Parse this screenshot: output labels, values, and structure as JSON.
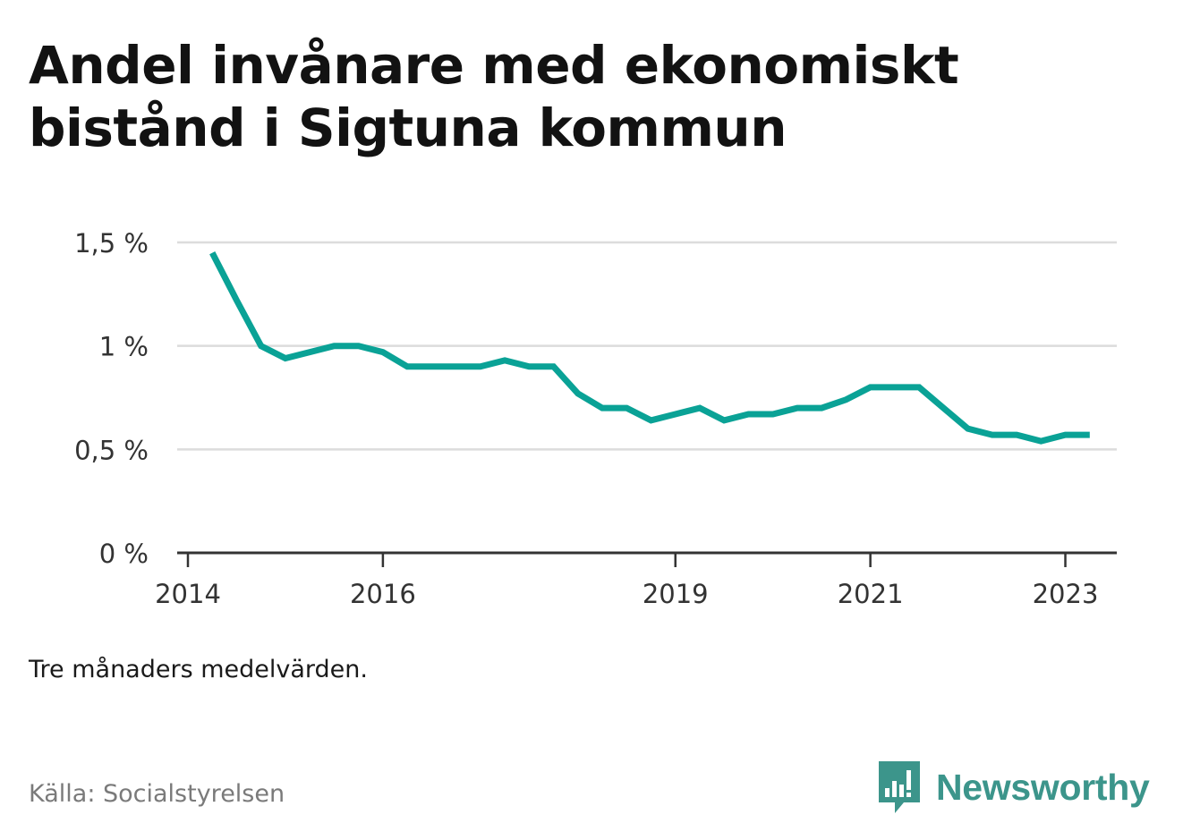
{
  "title": "Andel invånare med ekonomiskt bistånd i Sigtuna kommun",
  "note": "Tre månaders medelvärden.",
  "source": "Källa: Socialstyrelsen",
  "brand": {
    "name": "Newsworthy",
    "icon": "newsworthy-logo-icon",
    "color": "#3c958b"
  },
  "chart_data": {
    "type": "line",
    "title": "Andel invånare med ekonomiskt bistånd i Sigtuna kommun",
    "xlabel": "",
    "ylabel": "",
    "xlim": [
      "2014-01",
      "2023-07"
    ],
    "ylim": [
      0,
      1.5
    ],
    "y_ticks": [
      {
        "value": 0,
        "label": "0 %"
      },
      {
        "value": 0.5,
        "label": "0,5 %"
      },
      {
        "value": 1,
        "label": "1 %"
      },
      {
        "value": 1.5,
        "label": "1,5 %"
      }
    ],
    "x_ticks": [
      {
        "value": "2014-01",
        "label": "2014"
      },
      {
        "value": "2016-01",
        "label": "2016"
      },
      {
        "value": "2019-01",
        "label": "2019"
      },
      {
        "value": "2021-01",
        "label": "2021"
      },
      {
        "value": "2023-01",
        "label": "2023"
      }
    ],
    "grid": true,
    "line_color": "#0aa296",
    "series": [
      {
        "x": [
          "2014-04",
          "2014-07",
          "2014-10",
          "2015-01",
          "2015-04",
          "2015-07",
          "2015-10",
          "2016-01",
          "2016-04",
          "2016-07",
          "2016-10",
          "2017-01",
          "2017-04",
          "2017-07",
          "2017-10",
          "2018-01",
          "2018-04",
          "2018-07",
          "2018-10",
          "2019-01",
          "2019-04",
          "2019-07",
          "2019-10",
          "2020-01",
          "2020-04",
          "2020-07",
          "2020-10",
          "2021-01",
          "2021-04",
          "2021-07",
          "2021-10",
          "2022-01",
          "2022-04",
          "2022-07",
          "2022-10",
          "2023-01",
          "2023-04"
        ],
        "values": [
          1.45,
          1.22,
          1.0,
          0.94,
          0.97,
          1.0,
          1.0,
          0.97,
          0.9,
          0.9,
          0.9,
          0.9,
          0.93,
          0.9,
          0.9,
          0.77,
          0.7,
          0.7,
          0.64,
          0.67,
          0.7,
          0.64,
          0.67,
          0.67,
          0.7,
          0.7,
          0.74,
          0.8,
          0.8,
          0.8,
          0.7,
          0.6,
          0.57,
          0.57,
          0.54,
          0.57,
          0.57
        ]
      }
    ]
  }
}
